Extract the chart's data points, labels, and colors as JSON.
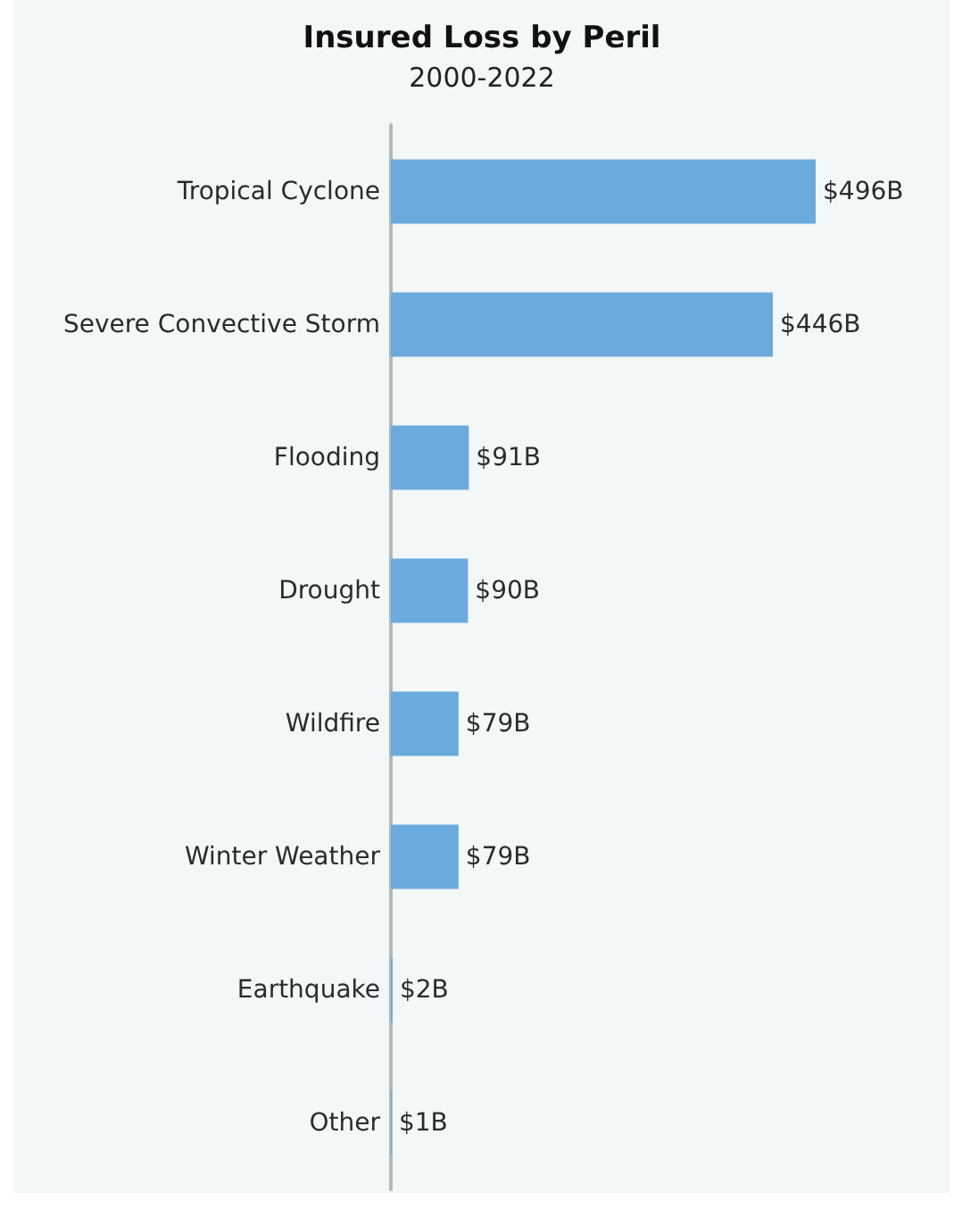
{
  "chart_data": {
    "type": "bar",
    "title": "Insured Loss by Peril",
    "subtitle": "2000-2022",
    "orientation": "horizontal",
    "categories": [
      "Tropical Cyclone",
      "Severe Convective Storm",
      "Flooding",
      "Drought",
      "Wildfire",
      "Winter Weather",
      "Earthquake",
      "Other"
    ],
    "values": [
      496,
      446,
      91,
      90,
      79,
      79,
      2,
      1
    ],
    "value_labels": [
      "$496B",
      "$446B",
      "$91B",
      "$90B",
      "$79B",
      "$79B",
      "$2B",
      "$1B"
    ],
    "color": "#6aaadc",
    "tick_labels": "y"
  }
}
